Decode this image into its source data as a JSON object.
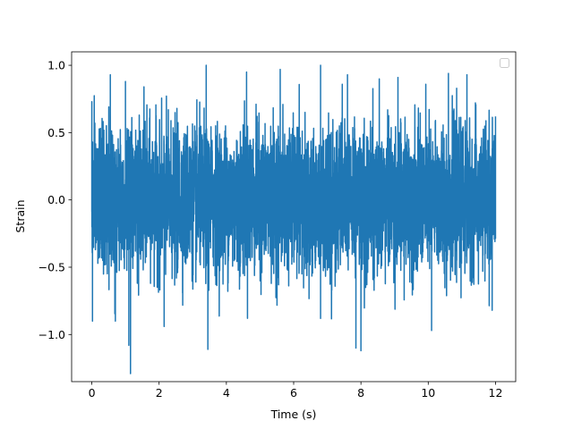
{
  "chart_data": {
    "type": "line",
    "title": "",
    "xlabel": "Time (s)",
    "ylabel": "Strain",
    "xlim": [
      -0.6,
      12.6
    ],
    "ylim": [
      -1.35,
      1.1
    ],
    "x_ticks": [
      0,
      2,
      4,
      6,
      8,
      10,
      12
    ],
    "x_tick_labels": [
      "0",
      "2",
      "4",
      "6",
      "8",
      "10",
      "12"
    ],
    "y_ticks": [
      -1.0,
      -0.5,
      0.0,
      0.5,
      1.0
    ],
    "y_tick_labels": [
      "−1.0",
      "−0.5",
      "0.0",
      "0.5",
      "1.0"
    ],
    "grid": false,
    "legend": {
      "placement": "top-right",
      "entries": []
    },
    "series": [
      {
        "color": "#1f77b4",
        "x_range": [
          0,
          12
        ],
        "description_stats": {
          "typical_amplitude": 0.5,
          "max": 1.0,
          "min": -1.29
        },
        "extremes": [
          {
            "x": 0.0,
            "y": 0.73
          },
          {
            "x": 0.02,
            "y": -0.9
          },
          {
            "x": 0.55,
            "y": 0.93
          },
          {
            "x": 0.7,
            "y": -0.9
          },
          {
            "x": 1.0,
            "y": 0.88
          },
          {
            "x": 1.1,
            "y": -1.08
          },
          {
            "x": 1.15,
            "y": -1.29
          },
          {
            "x": 1.55,
            "y": 0.84
          },
          {
            "x": 2.15,
            "y": -0.94
          },
          {
            "x": 3.4,
            "y": 1.0
          },
          {
            "x": 3.45,
            "y": -1.11
          },
          {
            "x": 4.6,
            "y": 0.95
          },
          {
            "x": 5.6,
            "y": 0.97
          },
          {
            "x": 6.8,
            "y": 1.0
          },
          {
            "x": 6.8,
            "y": -0.88
          },
          {
            "x": 7.6,
            "y": 0.93
          },
          {
            "x": 7.85,
            "y": -1.1
          },
          {
            "x": 8.0,
            "y": -1.12
          },
          {
            "x": 9.1,
            "y": 0.91
          },
          {
            "x": 10.1,
            "y": -0.97
          },
          {
            "x": 10.6,
            "y": 0.94
          },
          {
            "x": 11.15,
            "y": 0.93
          },
          {
            "x": 11.9,
            "y": -0.82
          },
          {
            "x": 12.0,
            "y": 0.62
          }
        ]
      }
    ]
  }
}
